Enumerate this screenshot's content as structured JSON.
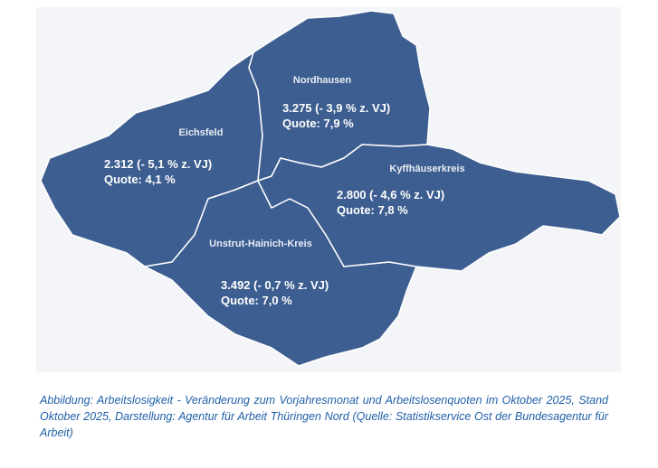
{
  "regions": [
    {
      "name": "Nordhausen",
      "change": "3.275 (- 3,9 % z. VJ)",
      "quote": "Quote: 7,9 %"
    },
    {
      "name": "Eichsfeld",
      "change": "2.312 (- 5,1 % z. VJ)",
      "quote": "Quote: 4,1 %"
    },
    {
      "name": "Kyffhäuserkreis",
      "change": "2.800 (- 4,6 % z. VJ)",
      "quote": "Quote: 7,8 %"
    },
    {
      "name": "Unstrut-Hainich-Kreis",
      "change": "3.492 (- 0,7 % z. VJ)",
      "quote": "Quote: 7,0 %"
    }
  ],
  "caption": "Abbildung: Arbeitslosigkeit - Veränderung zum Vorjahresmonat und Arbeitslosenquoten im Oktober 2025, Stand Oktober 2025, Darstellung: Agentur für Arbeit Thüringen Nord (Quelle: Statistikservice Ost der Bundesagentur für Arbeit)"
}
